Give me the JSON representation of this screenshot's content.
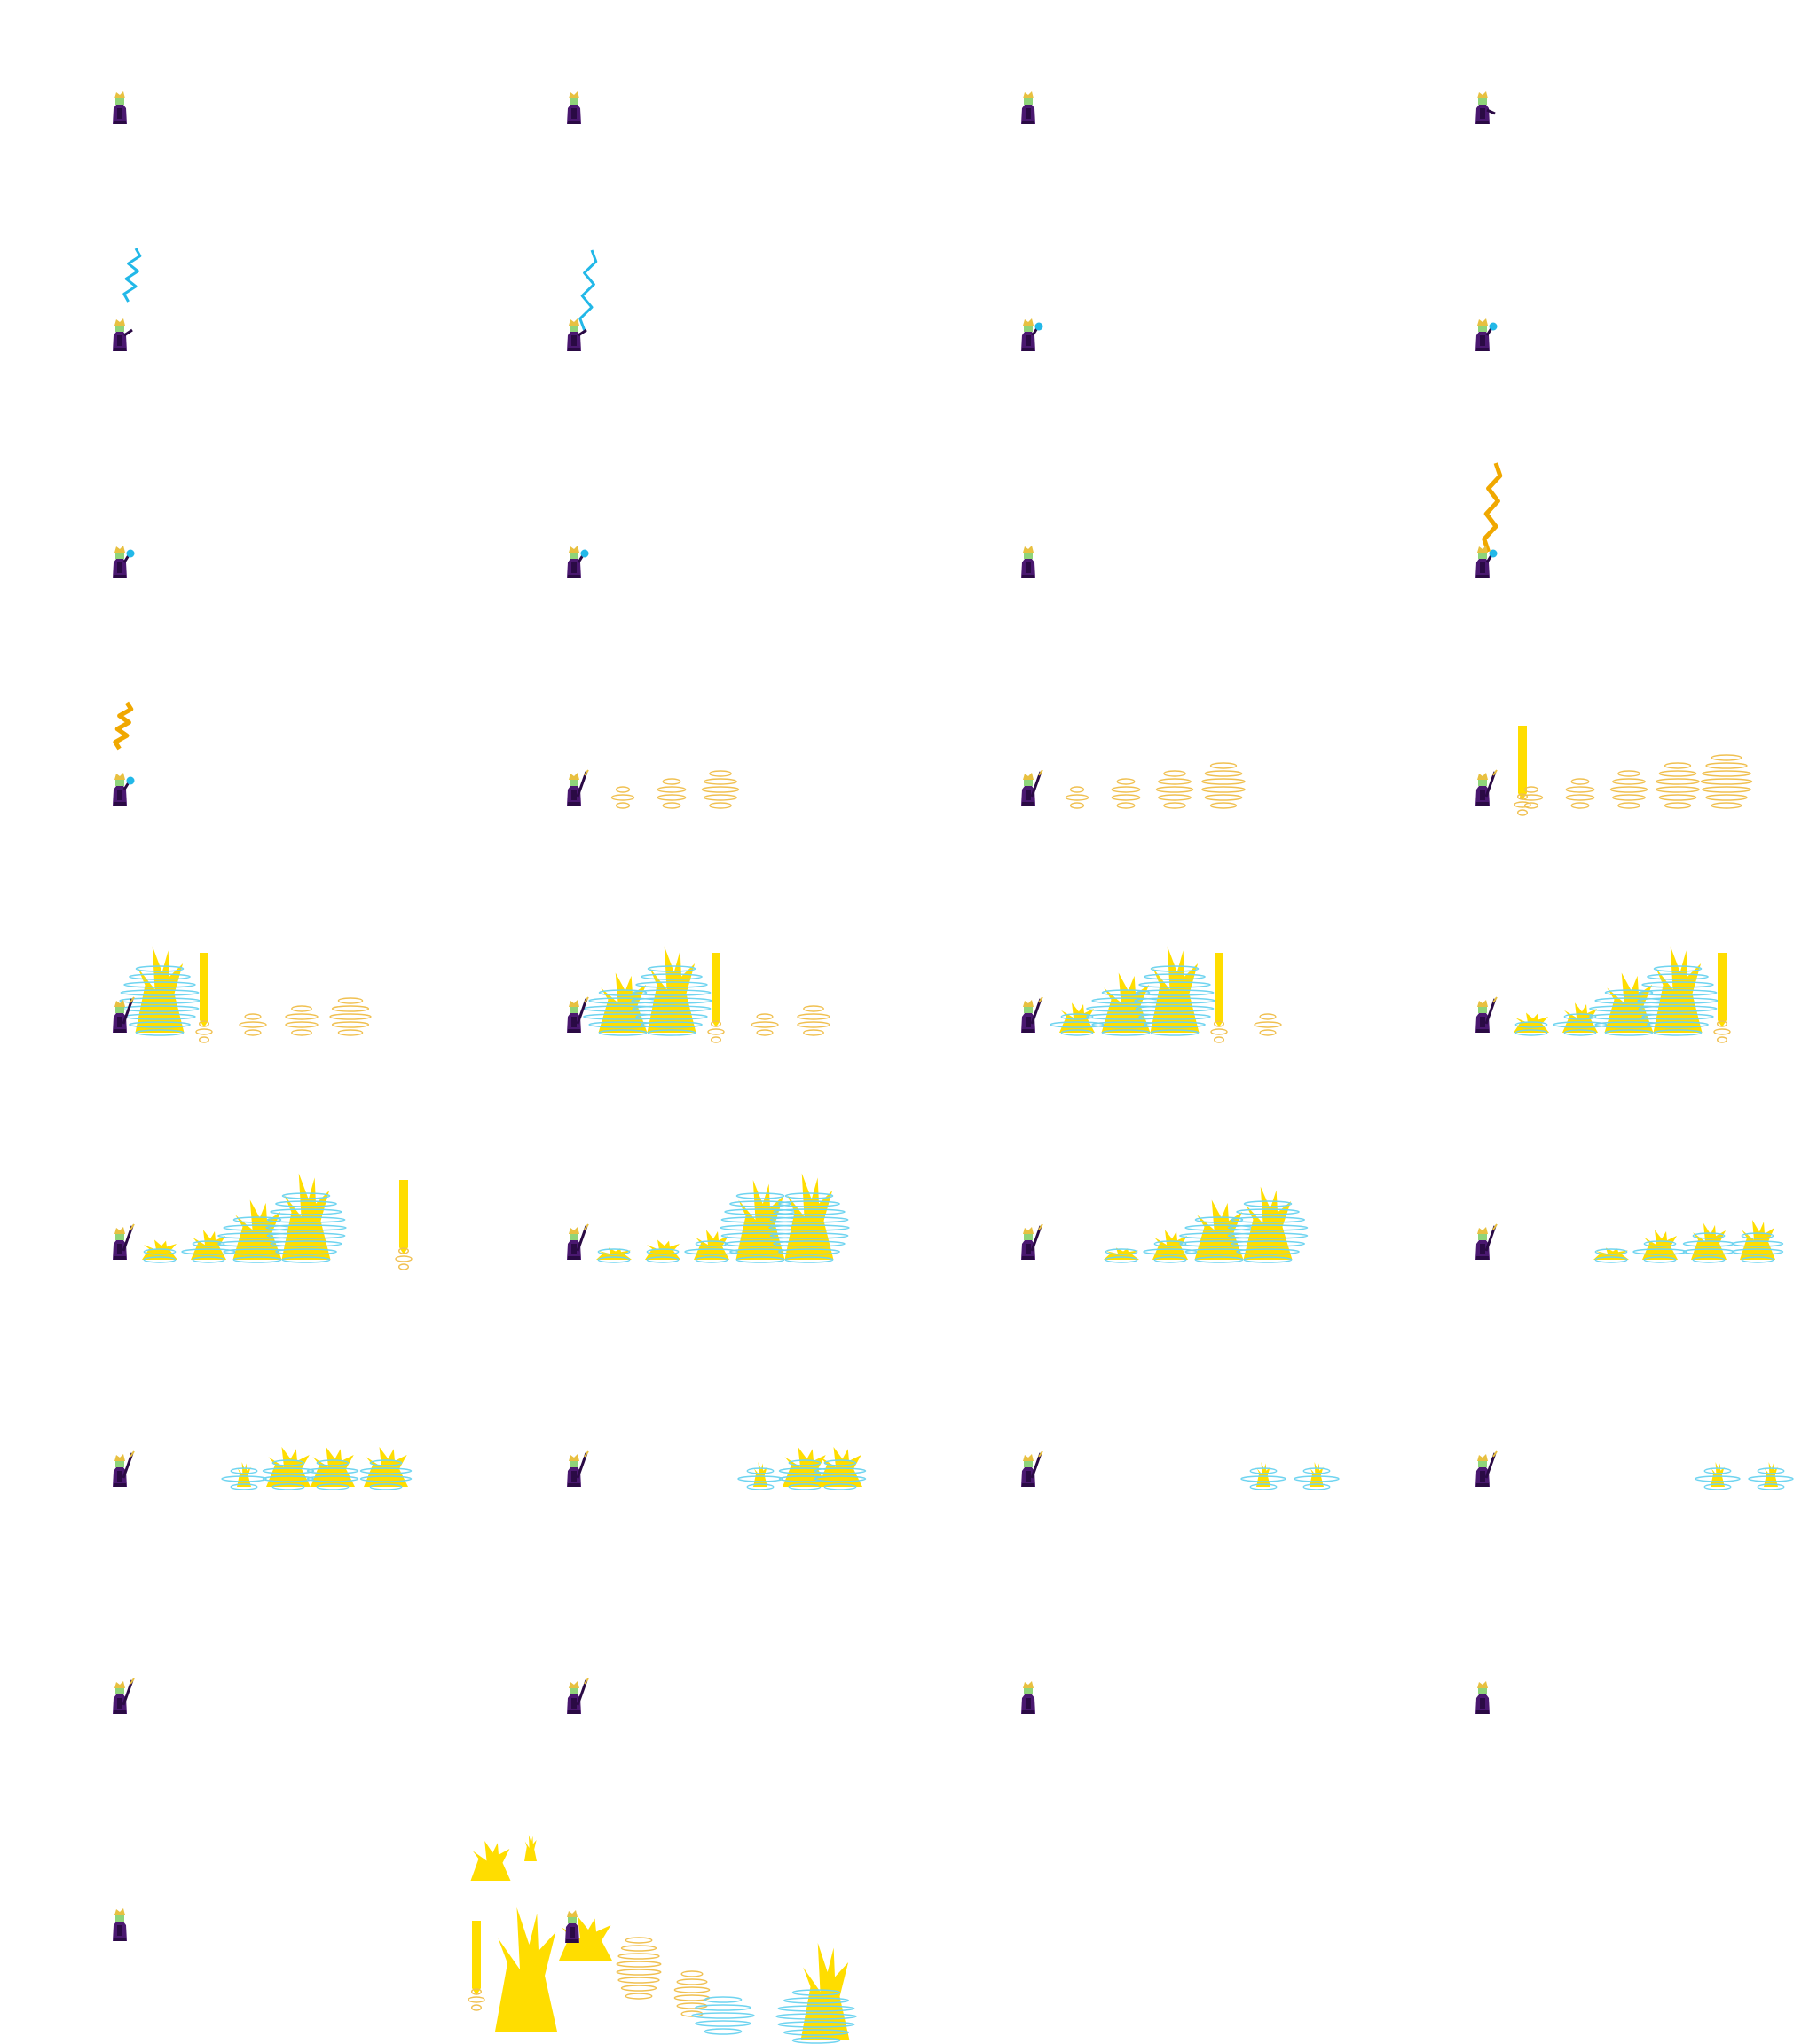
{
  "sheet": {
    "kind": "sprite-sheet",
    "columns": 4,
    "rows": 9,
    "frame_count": 33
  },
  "palette": {
    "background": "#ffffff",
    "robe": "#4a1870",
    "robe_dark": "#2a0a44",
    "hair": "#e8c040",
    "face": "#8fd47a",
    "staff": "#2a0a44",
    "cyan": "#22b8e8",
    "cyan_ring": "#6fd4f0",
    "orange": "#f0a800",
    "gold_ring": "#f0c050",
    "flame": "#ffdd00"
  },
  "frames": [
    {
      "id": 1,
      "caster": "idle",
      "effects": []
    },
    {
      "id": 2,
      "caster": "idle",
      "effects": []
    },
    {
      "id": 3,
      "caster": "idle",
      "effects": []
    },
    {
      "id": 4,
      "caster": "turn",
      "effects": []
    },
    {
      "id": 5,
      "caster": "raise",
      "effects": [
        "cyan-bolt-short"
      ]
    },
    {
      "id": 6,
      "caster": "raise",
      "effects": [
        "cyan-bolt-long"
      ]
    },
    {
      "id": 7,
      "caster": "orb",
      "effects": []
    },
    {
      "id": 8,
      "caster": "orb",
      "effects": []
    },
    {
      "id": 9,
      "caster": "orb",
      "effects": []
    },
    {
      "id": 10,
      "caster": "orb",
      "effects": []
    },
    {
      "id": 11,
      "caster": "idle",
      "effects": []
    },
    {
      "id": 12,
      "caster": "orb",
      "effects": [
        "orange-bolt"
      ]
    },
    {
      "id": 13,
      "caster": "orb",
      "effects": [
        "orange-spark"
      ]
    },
    {
      "id": 14,
      "caster": "staff",
      "effects": [
        "gold-rings-3"
      ]
    },
    {
      "id": 15,
      "caster": "staff",
      "effects": [
        "gold-rings-4"
      ]
    },
    {
      "id": 16,
      "caster": "staff",
      "effects": [
        "pillar",
        "gold-rings-5"
      ]
    },
    {
      "id": 17,
      "caster": "staff",
      "effects": [
        "eruption-1"
      ]
    },
    {
      "id": 18,
      "caster": "staff",
      "effects": [
        "eruption-2"
      ]
    },
    {
      "id": 19,
      "caster": "staff",
      "effects": [
        "eruption-3"
      ]
    },
    {
      "id": 20,
      "caster": "staff",
      "effects": [
        "eruption-4"
      ]
    },
    {
      "id": 21,
      "caster": "staff",
      "effects": [
        "eruption-5"
      ]
    },
    {
      "id": 22,
      "caster": "staff",
      "effects": [
        "eruption-6"
      ]
    },
    {
      "id": 23,
      "caster": "staff",
      "effects": [
        "eruption-7"
      ]
    },
    {
      "id": 24,
      "caster": "staff",
      "effects": [
        "eruption-8"
      ]
    },
    {
      "id": 25,
      "caster": "staff",
      "effects": [
        "fade-1"
      ]
    },
    {
      "id": 26,
      "caster": "staff",
      "effects": [
        "fade-2"
      ]
    },
    {
      "id": 27,
      "caster": "staff",
      "effects": [
        "fade-3"
      ]
    },
    {
      "id": 28,
      "caster": "staff",
      "effects": [
        "fade-3"
      ]
    },
    {
      "id": 29,
      "caster": "staff",
      "effects": []
    },
    {
      "id": 30,
      "caster": "staff",
      "effects": []
    },
    {
      "id": 31,
      "caster": "idle",
      "effects": []
    },
    {
      "id": 32,
      "caster": "idle",
      "effects": []
    },
    {
      "id": 33,
      "caster": "idle",
      "effects": []
    }
  ],
  "atlas": [
    "flame-large",
    "flame-small",
    "pillar",
    "flame-huge",
    "flame-splash",
    "gold-rings",
    "cyan-rings",
    "mixed-burst"
  ]
}
